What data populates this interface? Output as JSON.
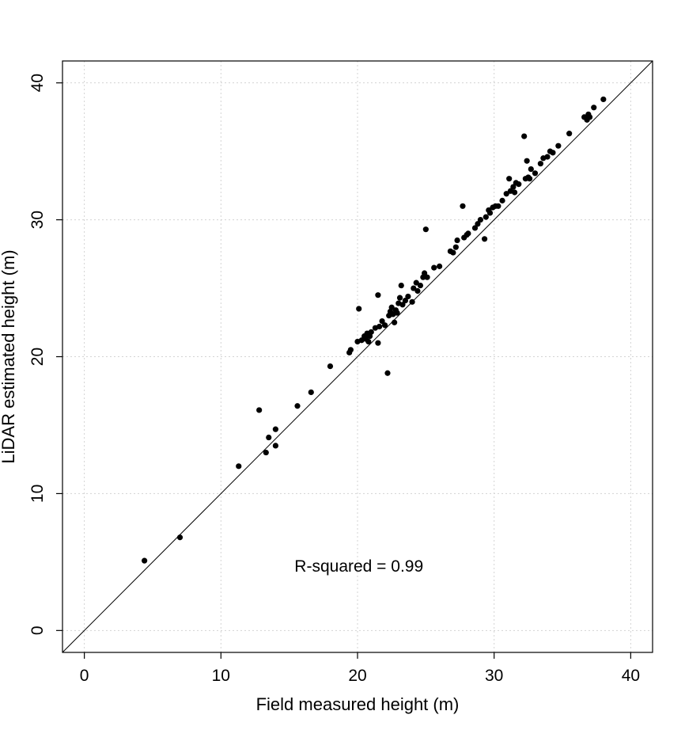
{
  "chart_data": {
    "type": "scatter",
    "title": "",
    "xlabel": "Field measured height (m)",
    "ylabel": "LiDAR estimated height (m)",
    "xlim": [
      -1.6,
      41.6
    ],
    "ylim": [
      -1.6,
      41.6
    ],
    "xticks": [
      "0",
      "10",
      "20",
      "30",
      "40"
    ],
    "yticks": [
      "0",
      "10",
      "20",
      "30",
      "40"
    ],
    "grid": true,
    "reference_line": "y = x",
    "annotation": "R-squared = 0.99",
    "points": [
      {
        "x": 4.4,
        "y": 5.1
      },
      {
        "x": 7.0,
        "y": 6.8
      },
      {
        "x": 11.3,
        "y": 12.0
      },
      {
        "x": 12.8,
        "y": 16.1
      },
      {
        "x": 13.3,
        "y": 13.0
      },
      {
        "x": 13.5,
        "y": 14.1
      },
      {
        "x": 14.0,
        "y": 14.7
      },
      {
        "x": 14.0,
        "y": 13.5
      },
      {
        "x": 15.6,
        "y": 16.4
      },
      {
        "x": 16.6,
        "y": 17.4
      },
      {
        "x": 18.0,
        "y": 19.3
      },
      {
        "x": 19.4,
        "y": 20.3
      },
      {
        "x": 19.5,
        "y": 20.5
      },
      {
        "x": 20.0,
        "y": 21.1
      },
      {
        "x": 20.1,
        "y": 23.5
      },
      {
        "x": 20.3,
        "y": 21.2
      },
      {
        "x": 20.5,
        "y": 21.5
      },
      {
        "x": 20.6,
        "y": 21.3
      },
      {
        "x": 20.7,
        "y": 21.7
      },
      {
        "x": 20.8,
        "y": 21.1
      },
      {
        "x": 20.9,
        "y": 21.5
      },
      {
        "x": 21.0,
        "y": 21.8
      },
      {
        "x": 21.3,
        "y": 22.1
      },
      {
        "x": 21.5,
        "y": 21.0
      },
      {
        "x": 21.5,
        "y": 24.5
      },
      {
        "x": 21.6,
        "y": 22.2
      },
      {
        "x": 21.8,
        "y": 22.6
      },
      {
        "x": 22.0,
        "y": 22.3
      },
      {
        "x": 22.2,
        "y": 18.8
      },
      {
        "x": 22.3,
        "y": 23.0
      },
      {
        "x": 22.4,
        "y": 23.3
      },
      {
        "x": 22.5,
        "y": 23.6
      },
      {
        "x": 22.6,
        "y": 23.1
      },
      {
        "x": 22.7,
        "y": 22.5
      },
      {
        "x": 22.8,
        "y": 23.4
      },
      {
        "x": 22.9,
        "y": 23.2
      },
      {
        "x": 23.0,
        "y": 23.9
      },
      {
        "x": 23.1,
        "y": 24.3
      },
      {
        "x": 23.2,
        "y": 25.2
      },
      {
        "x": 23.3,
        "y": 23.8
      },
      {
        "x": 23.5,
        "y": 24.1
      },
      {
        "x": 23.7,
        "y": 24.4
      },
      {
        "x": 24.0,
        "y": 24.0
      },
      {
        "x": 24.1,
        "y": 25.0
      },
      {
        "x": 24.3,
        "y": 25.4
      },
      {
        "x": 24.4,
        "y": 24.8
      },
      {
        "x": 24.6,
        "y": 25.2
      },
      {
        "x": 24.8,
        "y": 25.8
      },
      {
        "x": 24.9,
        "y": 26.1
      },
      {
        "x": 25.0,
        "y": 29.3
      },
      {
        "x": 25.1,
        "y": 25.8
      },
      {
        "x": 25.6,
        "y": 26.5
      },
      {
        "x": 26.0,
        "y": 26.6
      },
      {
        "x": 26.8,
        "y": 27.7
      },
      {
        "x": 27.0,
        "y": 27.6
      },
      {
        "x": 27.2,
        "y": 28.0
      },
      {
        "x": 27.3,
        "y": 28.5
      },
      {
        "x": 27.7,
        "y": 31.0
      },
      {
        "x": 27.8,
        "y": 28.7
      },
      {
        "x": 28.0,
        "y": 28.9
      },
      {
        "x": 28.1,
        "y": 29.0
      },
      {
        "x": 28.6,
        "y": 29.4
      },
      {
        "x": 28.8,
        "y": 29.7
      },
      {
        "x": 29.0,
        "y": 30.0
      },
      {
        "x": 29.3,
        "y": 28.6
      },
      {
        "x": 29.4,
        "y": 30.2
      },
      {
        "x": 29.6,
        "y": 30.7
      },
      {
        "x": 29.7,
        "y": 30.5
      },
      {
        "x": 29.9,
        "y": 30.9
      },
      {
        "x": 30.1,
        "y": 31.0
      },
      {
        "x": 30.3,
        "y": 31.0
      },
      {
        "x": 30.6,
        "y": 31.4
      },
      {
        "x": 30.9,
        "y": 31.9
      },
      {
        "x": 31.1,
        "y": 33.0
      },
      {
        "x": 31.2,
        "y": 32.1
      },
      {
        "x": 31.4,
        "y": 32.4
      },
      {
        "x": 31.5,
        "y": 32.0
      },
      {
        "x": 31.6,
        "y": 32.7
      },
      {
        "x": 31.8,
        "y": 32.6
      },
      {
        "x": 32.2,
        "y": 36.1
      },
      {
        "x": 32.3,
        "y": 33.0
      },
      {
        "x": 32.4,
        "y": 34.3
      },
      {
        "x": 32.5,
        "y": 33.1
      },
      {
        "x": 32.6,
        "y": 33.0
      },
      {
        "x": 32.7,
        "y": 33.7
      },
      {
        "x": 33.0,
        "y": 33.4
      },
      {
        "x": 33.4,
        "y": 34.1
      },
      {
        "x": 33.6,
        "y": 34.5
      },
      {
        "x": 33.9,
        "y": 34.6
      },
      {
        "x": 34.1,
        "y": 35.0
      },
      {
        "x": 34.3,
        "y": 34.9
      },
      {
        "x": 34.7,
        "y": 35.4
      },
      {
        "x": 35.5,
        "y": 36.3
      },
      {
        "x": 36.6,
        "y": 37.5
      },
      {
        "x": 36.8,
        "y": 37.3
      },
      {
        "x": 36.9,
        "y": 37.7
      },
      {
        "x": 37.0,
        "y": 37.5
      },
      {
        "x": 37.3,
        "y": 38.2
      },
      {
        "x": 38.0,
        "y": 38.8
      }
    ]
  }
}
